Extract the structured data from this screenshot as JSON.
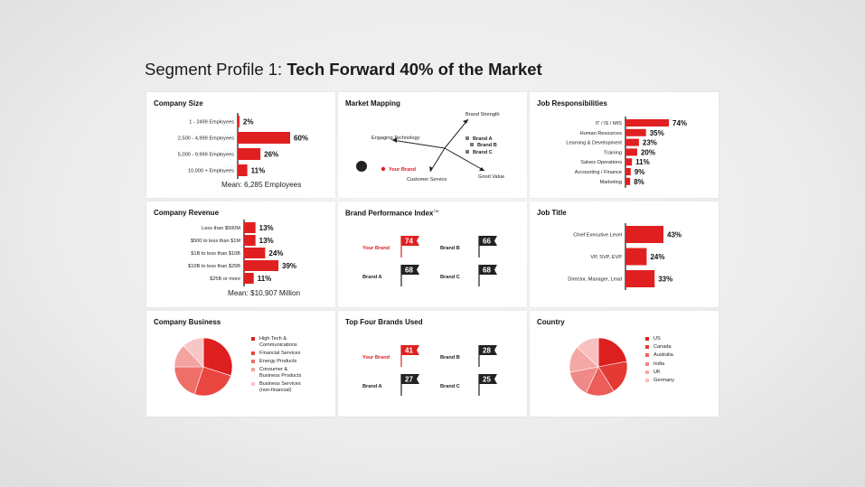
{
  "header": {
    "title_prefix": "Segment Profile 1:",
    "title_main": "Tech Forward 40% of the Market"
  },
  "colors": {
    "primary": "#e02020",
    "dark": "#222222",
    "panel": "#ffffff"
  },
  "panels": {
    "company_size": {
      "title": "Company Size",
      "mean": "Mean: 6,285 Employees",
      "chart_data": {
        "type": "bar",
        "categories": [
          "1 - 2499 Employees",
          "2,500 - 4,999 Employees",
          "5,000 - 9,999 Employees",
          "10,000 + Employees"
        ],
        "values": [
          2,
          60,
          26,
          11
        ],
        "labels": [
          "2%",
          "60%",
          "26%",
          "11%"
        ]
      }
    },
    "market_mapping": {
      "title": "Market Mapping",
      "axes": [
        "Brand Strength",
        "Engaging Technology",
        "Customer Service",
        "Good Value"
      ],
      "brands": [
        "Brand A",
        "Brand B",
        "Brand C"
      ],
      "your_brand": "Your Brand"
    },
    "job_responsibilities": {
      "title": "Job Responsibilities",
      "chart_data": {
        "type": "bar",
        "categories": [
          "IT / IS / MIS",
          "Human Resources",
          "Learning & Development",
          "Training",
          "Salves Operations",
          "Accounting / Finance",
          "Marketing"
        ],
        "values": [
          74,
          35,
          23,
          20,
          11,
          9,
          8
        ],
        "labels": [
          "74%",
          "35%",
          "23%",
          "20%",
          "11%",
          "9%",
          "8%"
        ]
      }
    },
    "company_revenue": {
      "title": "Company Revenue",
      "mean": "Mean: $10,907 Million",
      "chart_data": {
        "type": "bar",
        "categories": [
          "Less than $500M",
          "$500 to less than $1M",
          "$1B to less than $10B",
          "$10B to less than $25B",
          "$25B or more"
        ],
        "values": [
          13,
          13,
          24,
          39,
          11
        ],
        "labels": [
          "13%",
          "13%",
          "24%",
          "39%",
          "11%"
        ]
      }
    },
    "brand_performance": {
      "title": "Brand Performance Index",
      "title_mark": "TM",
      "flags": [
        {
          "name": "Your Brand",
          "value": "74",
          "highlight": true
        },
        {
          "name": "Brand B",
          "value": "66",
          "highlight": false
        },
        {
          "name": "Brand A",
          "value": "68",
          "highlight": false
        },
        {
          "name": "Brand C",
          "value": "68",
          "highlight": false
        }
      ]
    },
    "job_title": {
      "title": "Job Title",
      "chart_data": {
        "type": "bar",
        "categories": [
          "Chief Executive Level",
          "VP, SVP, EVP",
          "Director, Manager, Lead"
        ],
        "values": [
          43,
          24,
          33
        ],
        "labels": [
          "43%",
          "24%",
          "33%"
        ]
      }
    },
    "company_business": {
      "title": "Company Business",
      "legend": [
        "High Tech &\nCommunications",
        "Financial Services",
        "Energy Products",
        "Consumer &\nBusiness Products",
        "Business Services\n(non-financial)"
      ],
      "legend_colors": [
        "#dd1f1f",
        "#e8463f",
        "#ef6e68",
        "#f4a3a0",
        "#f8c6c4"
      ],
      "chart_data": {
        "type": "pie",
        "labels": [
          "High Tech & Communications",
          "Financial Services",
          "Energy Products",
          "Consumer & Business Products",
          "Business Services (non-financial)"
        ],
        "values": [
          30,
          25,
          20,
          13,
          12
        ],
        "colors": [
          "#dd1f1f",
          "#e8463f",
          "#ef6e68",
          "#f4a3a0",
          "#f8c6c4"
        ]
      }
    },
    "top_brands": {
      "title": "Top Four Brands Used",
      "flags": [
        {
          "name": "Your Brand",
          "value": "41",
          "highlight": true
        },
        {
          "name": "Brand B",
          "value": "28",
          "highlight": false
        },
        {
          "name": "Brand A",
          "value": "27",
          "highlight": false
        },
        {
          "name": "Brand C",
          "value": "25",
          "highlight": false
        }
      ]
    },
    "country": {
      "title": "Country",
      "legend": [
        "US",
        "Canada",
        "Australia",
        "India",
        "UK",
        "Germany"
      ],
      "legend_colors": [
        "#dd1f1f",
        "#e33a34",
        "#eb5d58",
        "#f08a86",
        "#f4a8a5",
        "#f7c0be"
      ],
      "chart_data": {
        "type": "pie",
        "labels": [
          "US",
          "Canada",
          "Australia",
          "India",
          "UK",
          "Germany"
        ],
        "values": [
          22,
          19,
          16,
          15,
          15,
          13
        ],
        "colors": [
          "#dd1f1f",
          "#e33a34",
          "#eb5d58",
          "#f08a86",
          "#f4a8a5",
          "#f7c0be"
        ]
      }
    }
  }
}
